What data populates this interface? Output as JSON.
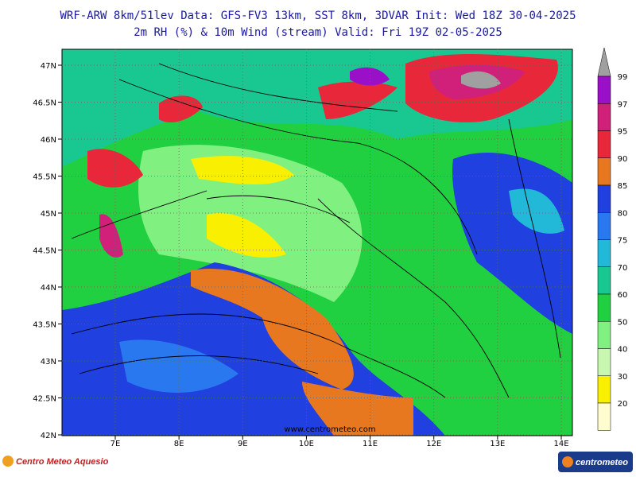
{
  "header": {
    "line1": "WRF-ARW 8km/51lev  Data: GFS-FV3 13km, SST 8km, 3DVAR  Init: Wed 18Z 30-04-2025",
    "line2": "2m RH (%) & 10m Wind (stream)  Valid: Fri 19Z 02-05-2025"
  },
  "map": {
    "lat_labels": [
      "47N",
      "46.5N",
      "46N",
      "45.5N",
      "45N",
      "44.5N",
      "44N",
      "43.5N",
      "43N",
      "42.5N",
      "42N"
    ],
    "lon_labels": [
      "7E",
      "8E",
      "9E",
      "10E",
      "11E",
      "12E",
      "13E",
      "14E"
    ],
    "watermark": "www.centrometeo.com"
  },
  "colorbar": {
    "labels": [
      99,
      97,
      95,
      90,
      85,
      80,
      75,
      70,
      60,
      50,
      40,
      30,
      20
    ],
    "top_color": "#a0a0a0",
    "colors": [
      "#9a10c8",
      "#d0207a",
      "#e8283a",
      "#e87820",
      "#2040e0",
      "#2a78f0",
      "#22b8d8",
      "#18c890",
      "#20d040",
      "#80f080",
      "#c8f8b0",
      "#f8f000",
      "#fffcd0"
    ]
  },
  "footer": {
    "left_logo": "Centro Meteo Aquesio",
    "right_logo": "centrometeo"
  }
}
